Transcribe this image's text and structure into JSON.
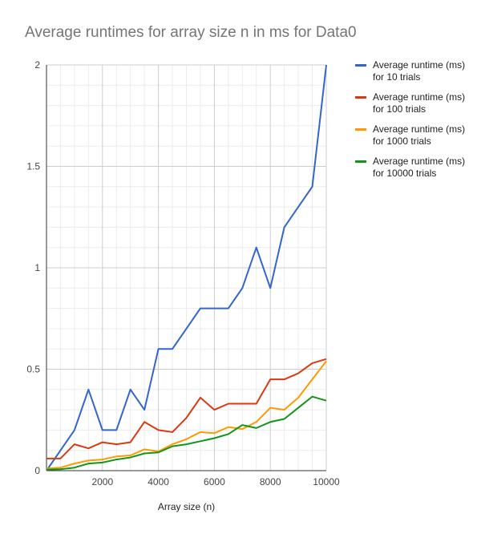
{
  "chart_data": {
    "type": "line",
    "title": "Average runtimes for array size n in ms for Data0",
    "xlabel": "Array size (n)",
    "ylabel": "",
    "xlim": [
      0,
      10000
    ],
    "ylim": [
      0,
      2
    ],
    "xticks": [
      2000,
      4000,
      6000,
      8000,
      10000
    ],
    "yticks": [
      0,
      0.5,
      1,
      1.5,
      2
    ],
    "grid": true,
    "legend_position": "right",
    "x": [
      0,
      500,
      1000,
      1500,
      2000,
      2500,
      3000,
      3500,
      4000,
      4500,
      5000,
      5500,
      6000,
      6500,
      7000,
      7500,
      8000,
      8500,
      9000,
      9500,
      10000
    ],
    "series": [
      {
        "name": "Average runtime (ms) for 10 trials",
        "color": "#3366cc",
        "values": [
          0.0,
          0.1,
          0.2,
          0.4,
          0.2,
          0.2,
          0.4,
          0.3,
          0.6,
          0.6,
          0.7,
          0.8,
          0.8,
          0.8,
          0.9,
          1.1,
          0.9,
          1.2,
          1.3,
          1.4,
          2.0
        ]
      },
      {
        "name": "Average runtime (ms) for 100 trials",
        "color": "#dc3912",
        "values": [
          0.06,
          0.06,
          0.13,
          0.11,
          0.14,
          0.13,
          0.14,
          0.24,
          0.2,
          0.19,
          0.26,
          0.36,
          0.3,
          0.33,
          0.33,
          0.33,
          0.45,
          0.45,
          0.48,
          0.53,
          0.55
        ]
      },
      {
        "name": "Average runtime (ms) for 1000 trials",
        "color": "#ff9900",
        "values": [
          0.01,
          0.015,
          0.035,
          0.05,
          0.055,
          0.07,
          0.075,
          0.105,
          0.095,
          0.13,
          0.155,
          0.19,
          0.185,
          0.215,
          0.205,
          0.24,
          0.31,
          0.3,
          0.36,
          0.45,
          0.54
        ]
      },
      {
        "name": "Average runtime (ms) for 10000 trials",
        "color": "#109618",
        "values": [
          0.005,
          0.007,
          0.015,
          0.035,
          0.04,
          0.055,
          0.065,
          0.085,
          0.09,
          0.12,
          0.13,
          0.145,
          0.16,
          0.18,
          0.225,
          0.21,
          0.24,
          0.255,
          0.31,
          0.365,
          0.345
        ]
      }
    ]
  }
}
